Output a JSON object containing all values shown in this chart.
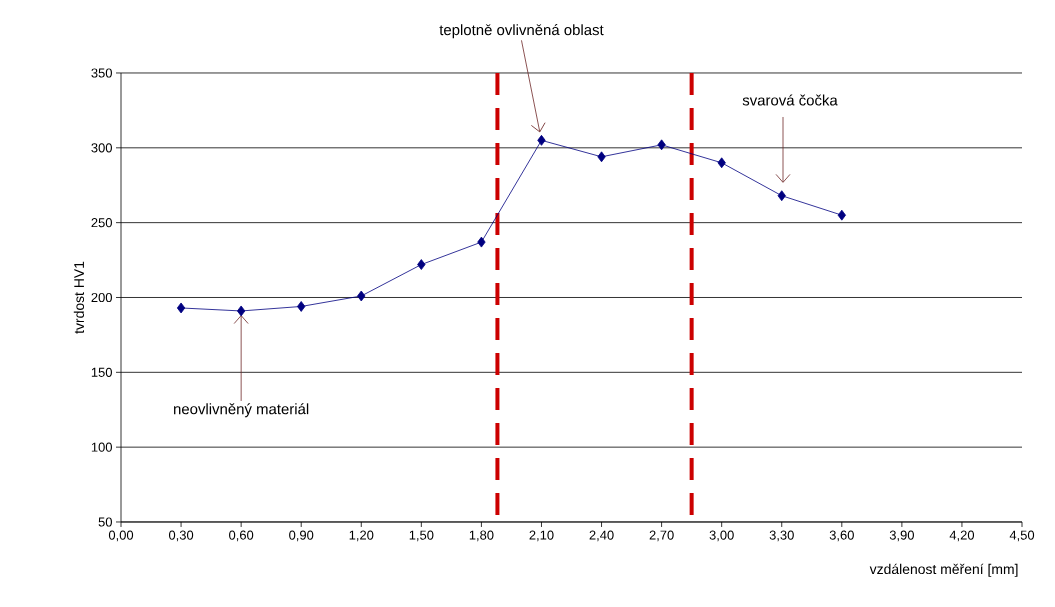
{
  "chart_data": {
    "type": "line",
    "xlabel": "vzdálenost měření  [mm]",
    "ylabel": "tvrdost HV1",
    "x": [
      0.3,
      0.6,
      0.9,
      1.2,
      1.5,
      1.8,
      2.1,
      2.4,
      2.7,
      3.0,
      3.3,
      3.6
    ],
    "series": [
      {
        "color": "#000080",
        "values": [
          193,
          191,
          194,
          201,
          222,
          237,
          305,
          294,
          302,
          290,
          268,
          255
        ]
      }
    ],
    "xlim": [
      0,
      4.5
    ],
    "ylim": [
      50,
      350
    ],
    "xticks": [
      {
        "value": 0,
        "label": "0,00"
      },
      {
        "value": 0.3,
        "label": "0,30"
      },
      {
        "value": 0.6,
        "label": "0,60"
      },
      {
        "value": 0.9,
        "label": "0,90"
      },
      {
        "value": 1.2,
        "label": "1,20"
      },
      {
        "value": 1.5,
        "label": "1,50"
      },
      {
        "value": 1.8,
        "label": "1,80"
      },
      {
        "value": 2.1,
        "label": "2,10"
      },
      {
        "value": 2.4,
        "label": "2,40"
      },
      {
        "value": 2.7,
        "label": "2,70"
      },
      {
        "value": 3.0,
        "label": "3,00"
      },
      {
        "value": 3.3,
        "label": "3,30"
      },
      {
        "value": 3.6,
        "label": "3,60"
      },
      {
        "value": 3.9,
        "label": "3,90"
      },
      {
        "value": 4.2,
        "label": "4,20"
      },
      {
        "value": 4.5,
        "label": "4,50"
      }
    ],
    "yticks": [
      50,
      100,
      150,
      200,
      250,
      300,
      350
    ],
    "grid": "y",
    "marker": "diamond",
    "line_style": "solid",
    "ref_lines": [
      {
        "axis": "x",
        "value": 1.88,
        "color": "#cc0000",
        "line_style": "dashed"
      },
      {
        "axis": "x",
        "value": 2.85,
        "color": "#cc0000",
        "line_style": "dashed"
      }
    ],
    "annotations": [
      {
        "text": "teplotně ovlivněná oblast",
        "x": 2.1,
        "y": 305
      },
      "svarová čočka",
      {
        "text": "neovlivněný materiál",
        "x": 0.6,
        "y": 191
      }
    ]
  }
}
